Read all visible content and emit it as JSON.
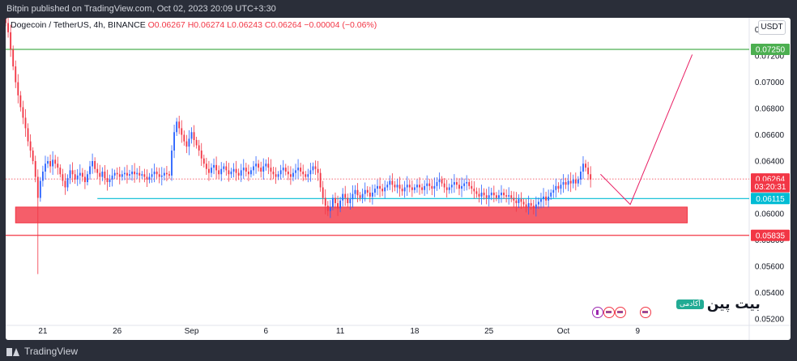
{
  "header": {
    "published": "Bitpin published on TradingView.com, Oct 02, 2023 20:09 UTC+3:30"
  },
  "footer": {
    "brand": "TradingView"
  },
  "legend": {
    "symbol": "Dogecoin / TetherUS, 4h, BINANCE",
    "open": "O0.06267",
    "high": "H0.06274",
    "low": "L0.06243",
    "close": "C0.06264",
    "change": "−0.00004 (−0.06%)"
  },
  "currency_button": "USDT",
  "watermark": {
    "name": "بیت پین",
    "badge": "آکادمی"
  },
  "colors": {
    "up": "#26a69a",
    "down": "#f23645",
    "candle_up": "#2962ff",
    "candle_down": "#f23645",
    "resistance": "#4caf50",
    "support_line": "#00bcd4",
    "zone": "#f23645",
    "projection": "#e91e63"
  },
  "chart_data": {
    "type": "candlestick",
    "symbol": "Dogecoin / TetherUS",
    "interval": "4h",
    "exchange": "BINANCE",
    "ylim": [
      0.0515,
      0.0749
    ],
    "y_ticks": [
      "0.07400",
      "0.07200",
      "0.07000",
      "0.06800",
      "0.06600",
      "0.06400",
      "0.06200",
      "0.06000",
      "0.05800",
      "0.05600",
      "0.05400",
      "0.05200"
    ],
    "x_ticks": [
      "21",
      "26",
      "Sep",
      "6",
      "11",
      "18",
      "25",
      "Oct",
      "9"
    ],
    "x_tick_index": [
      15,
      45,
      75,
      105,
      135,
      165,
      195,
      225,
      255
    ],
    "y_tick_values": [
      0.074,
      0.072,
      0.07,
      0.068,
      0.066,
      0.064,
      0.062,
      0.06,
      0.058,
      0.056,
      0.054,
      0.052
    ],
    "price_labels": [
      {
        "text": "0.07250",
        "value": 0.0725,
        "color": "#4caf50"
      },
      {
        "text": "0.06264",
        "value": 0.06264,
        "color": "#f23645"
      },
      {
        "text": "03:20:31",
        "value": 0.06205,
        "color": "#f23645"
      },
      {
        "text": "0.06115",
        "value": 0.06115,
        "color": "#00bcd4"
      },
      {
        "text": "0.05835",
        "value": 0.05835,
        "color": "#f23645"
      }
    ],
    "horizontal_lines": [
      {
        "value": 0.0725,
        "color": "#4caf50",
        "from_index": 0
      },
      {
        "value": 0.05835,
        "color": "#f23645",
        "from_index": 0
      },
      {
        "value": 0.06115,
        "color": "#00bcd4",
        "from_index": 37
      },
      {
        "value": 0.06264,
        "color": "#f23645",
        "dotted": true,
        "from_index": 0
      }
    ],
    "zone": {
      "from_index": 4,
      "to_index": 275,
      "top": 0.0605,
      "bottom": 0.0593,
      "color": "#f23645"
    },
    "projection": [
      {
        "index": 240,
        "value": 0.063
      },
      {
        "index": 252,
        "value": 0.0607
      },
      {
        "index": 277,
        "value": 0.0721
      }
    ],
    "closes_index_start": 0,
    "closes": [
      0.0745,
      0.0738,
      0.0725,
      0.0712,
      0.07,
      0.069,
      0.0681,
      0.0673,
      0.0665,
      0.0655,
      0.0648,
      0.064,
      0.0628,
      0.0612,
      0.0625,
      0.0632,
      0.0638,
      0.064,
      0.0636,
      0.0641,
      0.0638,
      0.0635,
      0.063,
      0.0625,
      0.062,
      0.0627,
      0.0633,
      0.063,
      0.0626,
      0.0629,
      0.0631,
      0.0628,
      0.0624,
      0.063,
      0.0636,
      0.064,
      0.0634,
      0.0631,
      0.0628,
      0.0632,
      0.0627,
      0.0624,
      0.0626,
      0.0629,
      0.0631,
      0.063,
      0.0628,
      0.063,
      0.0631,
      0.0629,
      0.063,
      0.0632,
      0.063,
      0.0631,
      0.0629,
      0.063,
      0.0628,
      0.0626,
      0.0628,
      0.063,
      0.0632,
      0.063,
      0.0628,
      0.0629,
      0.0631,
      0.063,
      0.0629,
      0.0648,
      0.0662,
      0.067,
      0.0665,
      0.066,
      0.0655,
      0.0651,
      0.0657,
      0.0662,
      0.0656,
      0.0652,
      0.0648,
      0.0642,
      0.0638,
      0.0634,
      0.0631,
      0.0635,
      0.0637,
      0.0633,
      0.063,
      0.0634,
      0.0636,
      0.0633,
      0.063,
      0.0632,
      0.0634,
      0.0631,
      0.0629,
      0.0633,
      0.0635,
      0.0632,
      0.063,
      0.0633,
      0.0636,
      0.0638,
      0.0635,
      0.0632,
      0.0636,
      0.0638,
      0.0635,
      0.0632,
      0.063,
      0.0628,
      0.063,
      0.0633,
      0.0635,
      0.0632,
      0.063,
      0.0628,
      0.0631,
      0.0633,
      0.0635,
      0.0632,
      0.063,
      0.0628,
      0.063,
      0.0633,
      0.0636,
      0.0634,
      0.0631,
      0.062,
      0.0612,
      0.0606,
      0.0602,
      0.0605,
      0.0612,
      0.0608,
      0.0604,
      0.061,
      0.0615,
      0.0612,
      0.0608,
      0.0611,
      0.0615,
      0.0618,
      0.0614,
      0.0612,
      0.0615,
      0.0618,
      0.0616,
      0.0613,
      0.0616,
      0.0619,
      0.0621,
      0.0619,
      0.0617,
      0.062,
      0.0622,
      0.0625,
      0.0622,
      0.062,
      0.0622,
      0.0619,
      0.0617,
      0.062,
      0.0622,
      0.062,
      0.0618,
      0.062,
      0.0622,
      0.062,
      0.0618,
      0.0621,
      0.0623,
      0.0621,
      0.0619,
      0.0621,
      0.0624,
      0.0626,
      0.0623,
      0.062,
      0.0618,
      0.062,
      0.0622,
      0.0624,
      0.0622,
      0.0619,
      0.0621,
      0.0623,
      0.0624,
      0.0621,
      0.0619,
      0.0617,
      0.0615,
      0.0613,
      0.0616,
      0.0614,
      0.0612,
      0.0614,
      0.0616,
      0.0614,
      0.0612,
      0.0614,
      0.0616,
      0.0614,
      0.0613,
      0.0614,
      0.0612,
      0.061,
      0.0608,
      0.0611,
      0.0609,
      0.0607,
      0.0605,
      0.0608,
      0.0606,
      0.0604,
      0.0607,
      0.0609,
      0.0611,
      0.0613,
      0.061,
      0.0613,
      0.0616,
      0.0618,
      0.0621,
      0.0619,
      0.0622,
      0.0624,
      0.0622,
      0.0625,
      0.0623,
      0.0626,
      0.0623,
      0.0626,
      0.0632,
      0.0638,
      0.0635,
      0.063,
      0.0626
    ]
  }
}
